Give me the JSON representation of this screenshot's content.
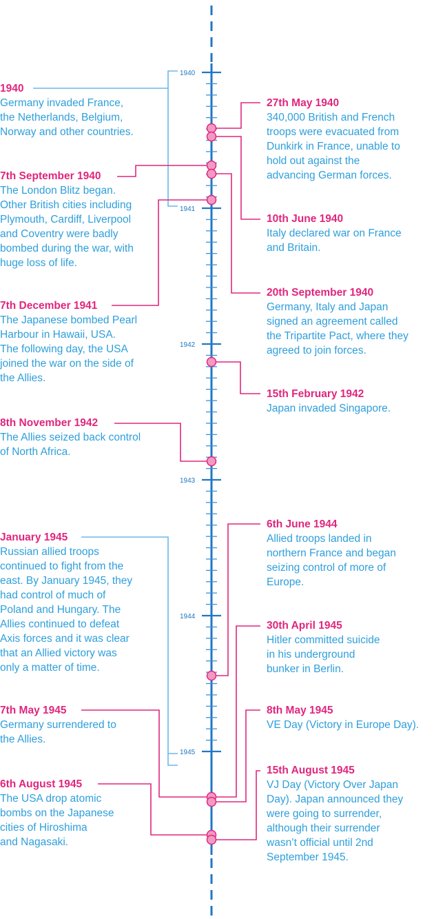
{
  "colors": {
    "axis": "#1f77c4",
    "tick": "#3d8fd4",
    "event_text": "#2e9fdb",
    "date_text": "#e0267d",
    "connector_pink": "#e0267d",
    "connector_blue": "#6ab7ea",
    "marker_fill": "#f29ac4",
    "marker_stroke": "#e0267d"
  },
  "timeline": {
    "years": [
      "1940",
      "1941",
      "1942",
      "1943",
      "1944",
      "1945"
    ]
  },
  "events": [
    {
      "id": "e1940",
      "date": "1940",
      "text": "Germany invaded France,\nthe Netherlands, Belgium,\nNorway and other countries."
    },
    {
      "id": "e27may1940",
      "date": "27th May 1940",
      "text": "340,000 British and French\ntroops were evacuated from\nDunkirk in France, unable to\nhold out against the\nadvancing German forces."
    },
    {
      "id": "e7sep1940",
      "date": "7th September 1940",
      "text": "The London Blitz began.\nOther British cities including\nPlymouth, Cardiff, Liverpool\nand Coventry were badly\nbombed during the war, with\nhuge loss of life."
    },
    {
      "id": "e10jun1940",
      "date": "10th June 1940",
      "text": "Italy declared war on France\nand Britain."
    },
    {
      "id": "e20sep1940",
      "date": "20th September 1940",
      "text": "Germany, Italy and Japan\nsigned an agreement called\nthe Tripartite Pact, where they\nagreed to join forces."
    },
    {
      "id": "e7dec1941",
      "date": "7th December 1941",
      "text": "The Japanese bombed Pearl\nHarbour in Hawaii, USA.\nThe following day, the USA\njoined the war on the side of\nthe Allies."
    },
    {
      "id": "e15feb1942",
      "date": "15th February 1942",
      "text": "Japan invaded Singapore."
    },
    {
      "id": "e8nov1942",
      "date": "8th November 1942",
      "text": "The Allies seized back control\nof North Africa."
    },
    {
      "id": "e6jun1944",
      "date": "6th June 1944",
      "text": "Allied troops landed in\nnorthern France and began\nseizing control of more of\nEurope."
    },
    {
      "id": "ejan1945",
      "date": "January 1945",
      "text": "Russian allied troops\ncontinued to fight from the\neast. By January 1945, they\nhad control of much of\nPoland and Hungary. The\nAllies continued to defeat\nAxis forces and it was clear\nthat an Allied victory was\nonly a matter of time."
    },
    {
      "id": "e30apr1945",
      "date": "30th April 1945",
      "text": "Hitler committed suicide\nin his underground\nbunker in Berlin."
    },
    {
      "id": "e7may1945",
      "date": "7th May 1945",
      "text": "Germany surrendered to\nthe Allies."
    },
    {
      "id": "e8may1945",
      "date": "8th May 1945",
      "text": "VE Day (Victory in Europe Day)."
    },
    {
      "id": "e6aug1945",
      "date": "6th August 1945",
      "text": "The USA drop atomic\nbombs on the Japanese\ncities of Hiroshima\nand Nagasaki."
    },
    {
      "id": "e15aug1945",
      "date": "15th August 1945",
      "text": "VJ Day (Victory Over Japan\nDay). Japan announced they\nwere going to surrender,\nalthough their surrender\nwasn’t official until 2nd\nSeptember 1945."
    }
  ]
}
